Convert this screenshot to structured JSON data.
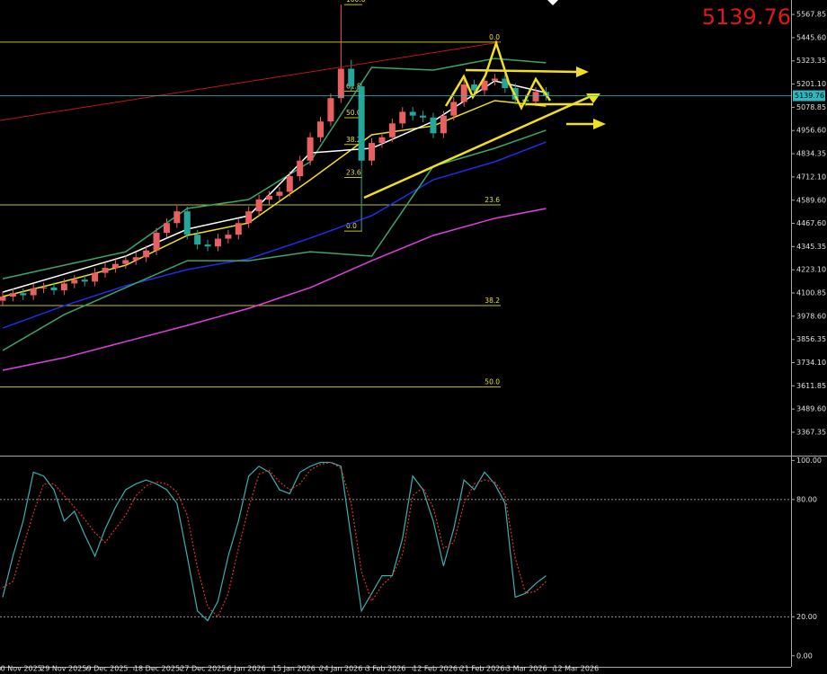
{
  "chart_data": [
    {
      "type": "candlestick",
      "current_price": 5139.76,
      "up_color": "#e86060",
      "down_color": "#26a69a",
      "price_line_color": "#2cb8c0",
      "xlim": [
        -0.26,
        76.9
      ],
      "ylim": [
        3249,
        5644
      ],
      "xticks": [
        {
          "value": -0.2,
          "label": "0 Nov 2025"
        },
        {
          "value": 3.7,
          "label": "29 Nov 2025"
        },
        {
          "value": 8.2,
          "label": "9 Dec 2025"
        },
        {
          "value": 12.8,
          "label": "18 Dec 2025"
        },
        {
          "value": 17.3,
          "label": "27 Dec 2025"
        },
        {
          "value": 21.9,
          "label": "6 Jan 2026"
        },
        {
          "value": 26.3,
          "label": "15 Jan 2026"
        },
        {
          "value": 30.9,
          "label": "24 Jan 2026"
        },
        {
          "value": 35.4,
          "label": "3 Feb 2026"
        },
        {
          "value": 40,
          "label": "12 Feb 2026"
        },
        {
          "value": 44.6,
          "label": "21 Feb 2026"
        },
        {
          "value": 49.1,
          "label": "3 Mar 2026"
        },
        {
          "value": 53.7,
          "label": "12 Mar 2026"
        }
      ],
      "yticks": [
        5567.85,
        {
          "value": 5445.6,
          "label": "5445.60"
        },
        5323.35,
        {
          "value": 5201.1,
          "label": "5201.10"
        },
        5078.85,
        {
          "value": 4956.6,
          "label": "4956.60"
        },
        4834.35,
        {
          "value": 4712.1,
          "label": "4712.10"
        },
        {
          "value": 4589.6,
          "label": "4589.60"
        },
        {
          "value": 4467.6,
          "label": "4467.60"
        },
        4345.35,
        {
          "value": 4223.1,
          "label": "4223.10"
        },
        4100.85,
        {
          "value": 3978.6,
          "label": "3978.60"
        },
        3856.35,
        {
          "value": 3734.1,
          "label": "3734.10"
        },
        3611.85,
        {
          "value": 3489.6,
          "label": "3489.60"
        },
        3367.35
      ],
      "open": [
        4060,
        4082,
        4100,
        4089,
        4125,
        4130,
        4115,
        4151,
        4171,
        4161,
        4207,
        4233,
        4254,
        4274,
        4289,
        4325,
        4418,
        4469,
        4531,
        4408,
        4356,
        4346,
        4387,
        4408,
        4469,
        4531,
        4593,
        4613,
        4634,
        4716,
        4798,
        4921,
        5004,
        5127,
        5282,
        5189,
        4798,
        4891,
        4921,
        4994,
        5055,
        5035,
        5025,
        4942,
        5035,
        5107,
        5199,
        5168,
        5219,
        5230,
        5180,
        5120,
        5110,
        5160
      ],
      "high": [
        4107,
        4125,
        4125,
        4150,
        4155,
        4155,
        4176,
        4196,
        4196,
        4232,
        4258,
        4279,
        4299,
        4314,
        4350,
        4443,
        4494,
        4560,
        4556,
        4433,
        4381,
        4412,
        4433,
        4494,
        4556,
        4618,
        4638,
        4659,
        4741,
        4823,
        4946,
        5029,
        5152,
        5620,
        5330,
        5214,
        4916,
        4946,
        5019,
        5080,
        5080,
        5060,
        5050,
        5060,
        5132,
        5224,
        5224,
        5244,
        5255,
        5255,
        5205,
        5145,
        5185,
        5185
      ],
      "low": [
        4035,
        4057,
        4064,
        4064,
        4100,
        4090,
        4090,
        4126,
        4136,
        4136,
        4182,
        4208,
        4229,
        4249,
        4264,
        4300,
        4393,
        4444,
        4383,
        4331,
        4321,
        4321,
        4362,
        4383,
        4444,
        4506,
        4568,
        4588,
        4609,
        4691,
        4773,
        4896,
        4979,
        5102,
        5164,
        4427,
        4773,
        4866,
        4896,
        4969,
        5010,
        5000,
        4917,
        4917,
        5010,
        5082,
        5143,
        5143,
        5194,
        5155,
        5095,
        5085,
        5085,
        5115
      ],
      "close": [
        4082,
        4100,
        4089,
        4125,
        4130,
        4115,
        4151,
        4171,
        4161,
        4207,
        4233,
        4254,
        4274,
        4289,
        4325,
        4418,
        4469,
        4531,
        4408,
        4356,
        4346,
        4387,
        4408,
        4469,
        4531,
        4593,
        4613,
        4634,
        4716,
        4798,
        4921,
        5004,
        5127,
        5282,
        5189,
        4798,
        4891,
        4921,
        4994,
        5055,
        5035,
        5025,
        4942,
        5035,
        5107,
        5199,
        5168,
        5219,
        5230,
        5180,
        5120,
        5110,
        5160,
        5139.76
      ],
      "lines": [
        {
          "color": "#e040e0",
          "x": [
            0,
            6,
            12,
            18,
            24,
            30,
            36,
            42,
            48,
            53
          ],
          "values": [
            3694,
            3760,
            3845,
            3930,
            4020,
            4129,
            4271,
            4404,
            4494,
            4546
          ]
        },
        {
          "color": "#1e2ee8",
          "x": [
            0,
            6,
            12,
            18,
            24,
            30,
            36,
            42,
            48,
            53
          ],
          "values": [
            3916,
            4034,
            4139,
            4224,
            4281,
            4390,
            4508,
            4697,
            4792,
            4896
          ]
        },
        {
          "color": "#3aa66a",
          "x": [
            0,
            6,
            12,
            18,
            24,
            30,
            36,
            42,
            48,
            53
          ],
          "values": [
            4176,
            4247,
            4318,
            4546,
            4593,
            4792,
            5289,
            5275,
            5336,
            5313
          ]
        },
        {
          "color": "#3aa66a",
          "x": [
            0,
            6,
            12,
            18,
            24,
            30,
            36,
            42,
            48,
            53
          ],
          "values": [
            3798,
            3987,
            4129,
            4271,
            4271,
            4318,
            4295,
            4768,
            4863,
            4958
          ]
        },
        {
          "color": "#f0e020",
          "x": [
            0,
            6,
            12,
            18,
            24,
            30,
            36,
            42,
            48,
            53
          ],
          "values": [
            4082,
            4162,
            4247,
            4404,
            4470,
            4697,
            4934,
            4981,
            5114,
            5085
          ]
        },
        {
          "color": "#ffffff",
          "x": [
            0,
            6,
            12,
            18,
            24,
            30,
            36,
            42,
            48,
            53
          ],
          "values": [
            4105,
            4200,
            4295,
            4437,
            4508,
            4839,
            4863,
            5005,
            5218,
            5156
          ]
        }
      ],
      "fib_color": "#c8c020",
      "fib_main": [
        {
          "value": 5422,
          "label": "0.0"
        },
        {
          "value": 4565,
          "label": "23.6"
        },
        {
          "value": 4035,
          "label": "38.2"
        },
        {
          "value": 3606,
          "label": "50.0"
        }
      ],
      "fib_spike": [
        {
          "value": 5620,
          "label": "100.0"
        },
        {
          "value": 5164,
          "label": "61.8"
        },
        {
          "value": 5024,
          "label": "50.0"
        },
        {
          "value": 4883,
          "label": "38.2"
        },
        {
          "value": 4709,
          "label": "23.6"
        },
        {
          "value": 4427,
          "label": "0.0"
        }
      ]
    },
    {
      "type": "stochastic",
      "ylim": [
        -7,
        102
      ],
      "yticks": [
        {
          "value": 100,
          "label": "100.00"
        },
        {
          "value": 80,
          "label": "80.00"
        },
        {
          "value": 20,
          "label": "20.00"
        },
        {
          "value": 0,
          "label": "0.00"
        }
      ],
      "levels": [
        80,
        20
      ],
      "series": [
        {
          "color": "#3ab0b0",
          "values": [
            30,
            51,
            69,
            94,
            92,
            85,
            69,
            74,
            62,
            51,
            65,
            76,
            85,
            88,
            90,
            88,
            85,
            78,
            51,
            23,
            18,
            28,
            51,
            69,
            92,
            97,
            94,
            85,
            83,
            94,
            97,
            99,
            99,
            97,
            60,
            23,
            32,
            41,
            41,
            60,
            92,
            85,
            69,
            46,
            65,
            90,
            85,
            94,
            88,
            78,
            30,
            32,
            37,
            41
          ]
        },
        {
          "color": "#e03030",
          "values": [
            35,
            38,
            56,
            73,
            88,
            88,
            82,
            76,
            70,
            63,
            58,
            65,
            72,
            82,
            87,
            89,
            88,
            84,
            72,
            45,
            25,
            20,
            32,
            55,
            76,
            93,
            95,
            89,
            85,
            88,
            95,
            98,
            99,
            96,
            78,
            43,
            28,
            36,
            41,
            52,
            82,
            86,
            76,
            55,
            58,
            78,
            88,
            90,
            89,
            82,
            50,
            32,
            33,
            38
          ]
        }
      ]
    }
  ]
}
